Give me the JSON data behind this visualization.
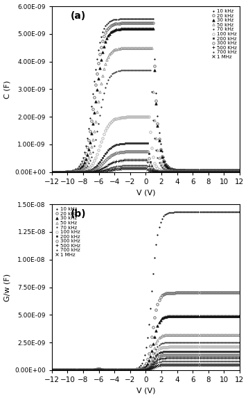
{
  "title_a": "(a)",
  "title_b": "(b)",
  "xlabel": "V (V)",
  "ylabel_a": "C (F)",
  "ylabel_b": "G/w (F)",
  "xlim": [
    -12,
    12
  ],
  "ylim_a": [
    0,
    6e-09
  ],
  "ylim_b": [
    0,
    1.5e-08
  ],
  "yticks_a": [
    0,
    1e-09,
    2e-09,
    3e-09,
    4e-09,
    5e-09,
    6e-09
  ],
  "ytick_labels_a": [
    "0.00E+00",
    "1.00E-09",
    "2.00E-09",
    "3.00E-09",
    "4.00E-09",
    "5.00E-09",
    "6.00E-09"
  ],
  "yticks_b": [
    0,
    2.5e-09,
    5e-09,
    7.5e-09,
    1e-08,
    1.25e-08,
    1.5e-08
  ],
  "ytick_labels_b": [
    "0.00E+00",
    "2.50E-09",
    "5.00E-09",
    "7.50E-09",
    "1.00E-08",
    "1.25E-08",
    "1.50E-08"
  ],
  "frequencies": [
    "10 kHz",
    "20 kHz",
    "30 kHz",
    "50 kHz",
    "70 kHz",
    "100 kHz",
    "200 kHz",
    "300 kHz",
    "500 KHz",
    "700 kHz",
    "1 MHz"
  ],
  "cv_c_max": [
    5.55e-09,
    5.4e-09,
    5.2e-09,
    4.5e-09,
    3.7e-09,
    2e-09,
    1.05e-09,
    7.5e-10,
    4.5e-10,
    2.5e-10,
    1.5e-10
  ],
  "cv_peak": [
    0.0,
    0.0,
    0.0,
    0.0,
    0.0,
    0.0,
    0.0,
    0.0,
    0.0,
    0.0,
    0.0
  ],
  "cv_v_onset": [
    -6.8,
    -6.6,
    -6.4,
    -6.2,
    -6.0,
    -5.8,
    -5.5,
    -5.3,
    -5.0,
    -4.8,
    -4.5
  ],
  "cv_width": [
    0.55,
    0.55,
    0.55,
    0.55,
    0.55,
    0.6,
    0.65,
    0.65,
    0.65,
    0.65,
    0.65
  ],
  "cv_c_flat_right": [
    8e-11,
    7e-11,
    6e-11,
    5e-11,
    5e-11,
    3e-11,
    2e-11,
    2e-11,
    1e-11,
    1e-11,
    5e-12
  ],
  "cv_drop_v": [
    1.0,
    1.0,
    1.0,
    0.8,
    0.7,
    0.5,
    0.3,
    0.3,
    0.2,
    0.2,
    0.1
  ],
  "cv_drop_w": [
    0.5,
    0.45,
    0.45,
    0.4,
    0.4,
    0.35,
    0.3,
    0.3,
    0.3,
    0.3,
    0.3
  ],
  "gw_g_max": [
    1.43e-08,
    7e-09,
    4.9e-09,
    3.2e-09,
    2.5e-09,
    2.1e-09,
    1.7e-09,
    1.4e-09,
    1.1e-09,
    8e-10,
    5e-10
  ],
  "gw_v_onset": [
    0.8,
    0.9,
    1.0,
    1.0,
    1.0,
    1.0,
    1.0,
    1.0,
    1.0,
    1.0,
    1.0
  ],
  "gw_width": [
    0.4,
    0.35,
    0.35,
    0.3,
    0.3,
    0.3,
    0.3,
    0.3,
    0.3,
    0.3,
    0.3
  ],
  "gw_g_min": [
    5e-11,
    4e-11,
    4e-11,
    3e-11,
    3e-11,
    3e-11,
    2e-11,
    2e-11,
    2e-11,
    1e-11,
    1e-11
  ],
  "gw_bump_v": [
    -6.0,
    -6.0,
    -6.0,
    -6.0,
    -6.0,
    -6.0,
    -6.0,
    -6.0,
    -6.0,
    -6.0,
    -6.0
  ],
  "gw_bump_h": [
    8e-11,
    7e-11,
    6e-11,
    5e-11,
    4e-11,
    3e-11,
    2e-11,
    2e-11,
    1e-11,
    1e-11,
    5e-12
  ],
  "marker_styles": [
    ".",
    "o",
    "^",
    "^",
    ".",
    "o",
    "s",
    "o",
    "+",
    ".",
    "x"
  ],
  "marker_sizes": [
    2.0,
    2.5,
    2.5,
    2.5,
    2.0,
    2.5,
    2.0,
    2.5,
    2.5,
    2.0,
    2.5
  ],
  "marker_colors": [
    "#111111",
    "#555555",
    "#111111",
    "#888888",
    "#333333",
    "#aaaaaa",
    "#333333",
    "#666666",
    "#111111",
    "#333333",
    "#111111"
  ],
  "marker_filled": [
    true,
    false,
    true,
    false,
    true,
    false,
    true,
    false,
    true,
    true,
    true
  ],
  "plot_step": 6,
  "background_color": "#ffffff"
}
